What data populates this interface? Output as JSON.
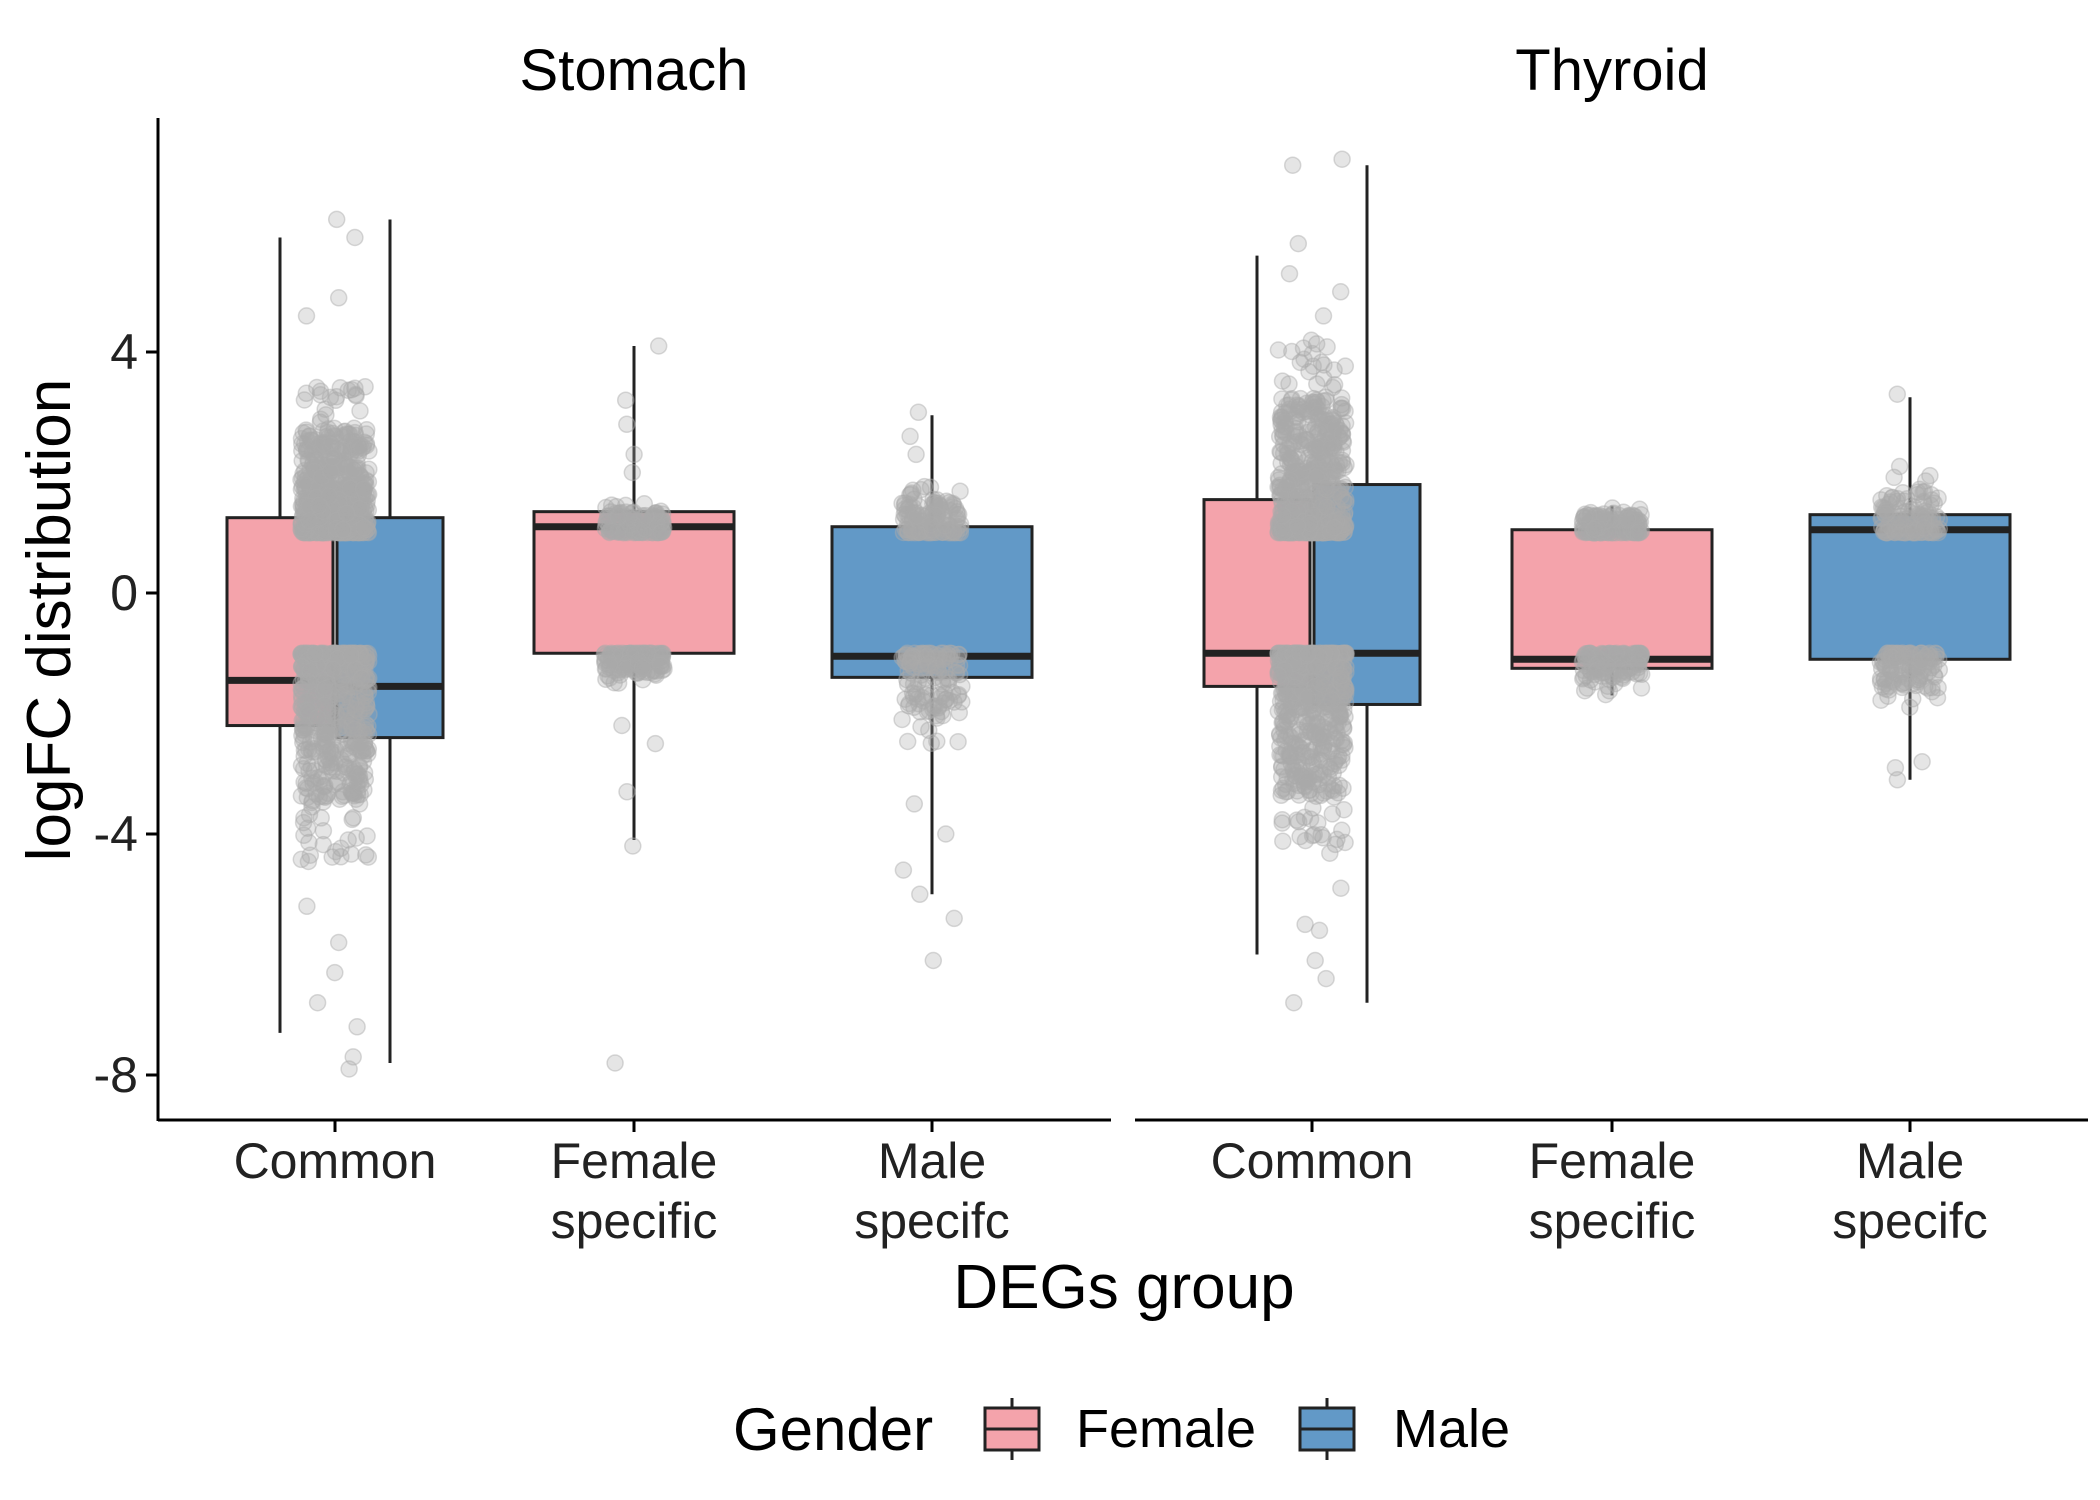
{
  "chart_data": {
    "type": "box",
    "ylabel": "logFC distribution",
    "xlabel": "DEGs group",
    "ylim": [
      -8.8,
      7.8
    ],
    "yticks": [
      4,
      0,
      -4,
      -8
    ],
    "categories": [
      "Common",
      "Female specific",
      "Male specifc"
    ],
    "category_lines": [
      [
        "Common"
      ],
      [
        "Female",
        "specific"
      ],
      [
        "Male",
        "specifc"
      ]
    ],
    "legend": {
      "title": "Gender",
      "position": "bottom",
      "entries": [
        {
          "name": "Female",
          "color": "#F4A3AB"
        },
        {
          "name": "Male",
          "color": "#6299C7"
        }
      ]
    },
    "colors": {
      "Female": "#F4A3AB",
      "Male": "#6299C7",
      "points": "#AAAAAA",
      "outline": "#222222"
    },
    "grid": false,
    "panels": [
      {
        "title": "Stomach",
        "boxes": [
          {
            "category": "Common",
            "gender": "Female",
            "whisker_low": -7.3,
            "q1": -2.2,
            "median": -1.45,
            "q3": 1.25,
            "whisker_high": 5.9
          },
          {
            "category": "Common",
            "gender": "Male",
            "whisker_low": -7.8,
            "q1": -2.4,
            "median": -1.55,
            "q3": 1.25,
            "whisker_high": 6.2
          },
          {
            "category": "Female specific",
            "gender": "Female",
            "whisker_low": -4.1,
            "q1": -1.0,
            "median": 1.1,
            "q3": 1.35,
            "whisker_high": 4.1
          },
          {
            "category": "Male specifc",
            "gender": "Male",
            "whisker_low": -5.0,
            "q1": -1.4,
            "median": -1.05,
            "q3": 1.1,
            "whisker_high": 2.95
          }
        ],
        "jitter": [
          {
            "category": "Common",
            "pos_range": [
              1.0,
              3.5
            ],
            "neg_range": [
              -4.5,
              -1.0
            ],
            "extra": [
              6.2,
              5.9,
              4.9,
              4.6,
              -5.2,
              -5.8,
              -6.3,
              -6.8,
              -7.2,
              -7.7,
              -7.9
            ]
          },
          {
            "category": "Female specific",
            "pos_range": [
              1.0,
              1.5
            ],
            "neg_range": [
              -1.5,
              -1.0
            ],
            "extra": [
              4.1,
              3.2,
              2.8,
              2.3,
              2.0,
              -2.2,
              -2.5,
              -3.3,
              -4.2,
              -7.8
            ]
          },
          {
            "category": "Male specifc",
            "pos_range": [
              1.0,
              1.8
            ],
            "neg_range": [
              -2.5,
              -1.0
            ],
            "extra": [
              3.0,
              2.6,
              2.3,
              -3.5,
              -4.0,
              -4.6,
              -5.0,
              -5.4,
              -6.1
            ]
          }
        ]
      },
      {
        "title": "Thyroid",
        "boxes": [
          {
            "category": "Common",
            "gender": "Female",
            "whisker_low": -6.0,
            "q1": -1.55,
            "median": -1.0,
            "q3": 1.55,
            "whisker_high": 5.6
          },
          {
            "category": "Common",
            "gender": "Male",
            "whisker_low": -6.8,
            "q1": -1.85,
            "median": -1.0,
            "q3": 1.8,
            "whisker_high": 7.1
          },
          {
            "category": "Female specific",
            "gender": "Female",
            "whisker_low": -1.7,
            "q1": -1.25,
            "median": -1.1,
            "q3": 1.05,
            "whisker_high": 1.45
          },
          {
            "category": "Male specifc",
            "gender": "Male",
            "whisker_low": -3.1,
            "q1": -1.1,
            "median": 1.05,
            "q3": 1.3,
            "whisker_high": 3.25
          }
        ],
        "jitter": [
          {
            "category": "Common",
            "pos_range": [
              1.0,
              4.2
            ],
            "neg_range": [
              -4.4,
              -1.0
            ],
            "extra": [
              7.2,
              7.1,
              5.8,
              5.3,
              5.0,
              4.6,
              -4.9,
              -5.5,
              -5.6,
              -6.1,
              -6.4,
              -6.8
            ]
          },
          {
            "category": "Female specific",
            "pos_range": [
              1.0,
              1.45
            ],
            "neg_range": [
              -1.7,
              -1.0
            ],
            "extra": []
          },
          {
            "category": "Male specifc",
            "pos_range": [
              1.0,
              2.0
            ],
            "neg_range": [
              -1.9,
              -1.0
            ],
            "extra": [
              3.3,
              2.1,
              -2.8,
              -2.9,
              -3.1
            ]
          }
        ]
      }
    ]
  }
}
